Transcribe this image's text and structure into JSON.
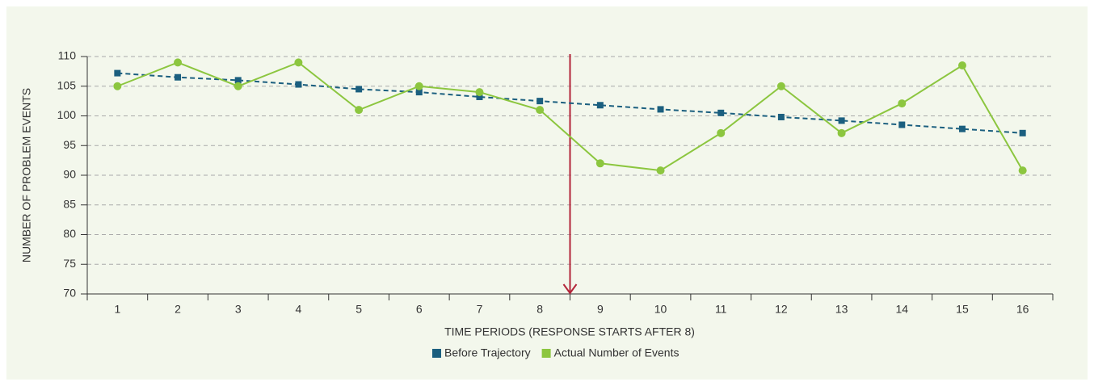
{
  "chart_data": {
    "type": "line",
    "y_label": "NUMBER OF PROBLEM EVENTS",
    "x_label": "TIME PERIODS (RESPONSE STARTS AFTER 8)",
    "categories": [
      "1",
      "2",
      "3",
      "4",
      "5",
      "6",
      "7",
      "8",
      "9",
      "10",
      "11",
      "12",
      "13",
      "14",
      "15",
      "16"
    ],
    "series": [
      {
        "name": "Before Trajectory",
        "color": "#1b5f7f",
        "values": [
          107.2,
          106.5,
          106,
          105.3,
          104.5,
          104,
          103.2,
          102.5,
          101.8,
          101.1,
          100.5,
          99.8,
          99.2,
          98.5,
          97.8,
          97.1
        ]
      },
      {
        "name": "Actual Number of Events",
        "color": "#8cc63f",
        "values": [
          105,
          109,
          105,
          109,
          101,
          105,
          104,
          101,
          92,
          90.8,
          97.1,
          105,
          97.1,
          102.1,
          108.5,
          90.8
        ]
      }
    ],
    "ylim": [
      70,
      110
    ],
    "yticks": [
      70,
      75,
      80,
      85,
      90,
      95,
      100,
      105,
      110
    ],
    "grid": true
  }
}
